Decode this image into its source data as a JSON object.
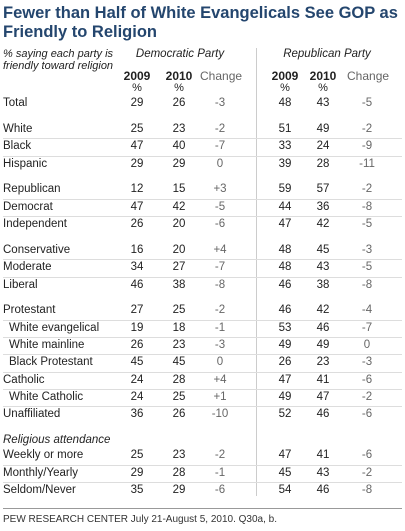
{
  "header": {
    "title": "Fewer than Half of White Evangelicals See GOP as Friendly to Religion",
    "note": "% saying each party is friendly toward religion"
  },
  "table": {
    "parties": [
      "Democratic Party",
      "Republican Party"
    ],
    "columns": [
      "2009",
      "2010",
      "Change",
      "2009",
      "2010",
      "Change"
    ],
    "units": [
      "%",
      "%",
      "%",
      "%"
    ],
    "sections": [
      {
        "rows": [
          {
            "label": "Total",
            "values": [
              "29",
              "26",
              "-3",
              "48",
              "43",
              "-5"
            ]
          }
        ]
      },
      {
        "rows": [
          {
            "label": "White",
            "values": [
              "25",
              "23",
              "-2",
              "51",
              "49",
              "-2"
            ]
          },
          {
            "label": "Black",
            "values": [
              "47",
              "40",
              "-7",
              "33",
              "24",
              "-9"
            ]
          },
          {
            "label": "Hispanic",
            "values": [
              "29",
              "29",
              "0",
              "39",
              "28",
              "-11"
            ]
          }
        ]
      },
      {
        "rows": [
          {
            "label": "Republican",
            "values": [
              "12",
              "15",
              "+3",
              "59",
              "57",
              "-2"
            ]
          },
          {
            "label": "Democrat",
            "values": [
              "47",
              "42",
              "-5",
              "44",
              "36",
              "-8"
            ]
          },
          {
            "label": "Independent",
            "values": [
              "26",
              "20",
              "-6",
              "47",
              "42",
              "-5"
            ]
          }
        ]
      },
      {
        "rows": [
          {
            "label": "Conservative",
            "values": [
              "16",
              "20",
              "+4",
              "48",
              "45",
              "-3"
            ]
          },
          {
            "label": "Moderate",
            "values": [
              "34",
              "27",
              "-7",
              "48",
              "43",
              "-5"
            ]
          },
          {
            "label": "Liberal",
            "values": [
              "46",
              "38",
              "-8",
              "46",
              "38",
              "-8"
            ]
          }
        ]
      },
      {
        "rows": [
          {
            "label": "Protestant",
            "values": [
              "27",
              "25",
              "-2",
              "46",
              "42",
              "-4"
            ],
            "subrows": [
              {
                "label": "White evangelical",
                "values": [
                  "19",
                  "18",
                  "-1",
                  "53",
                  "46",
                  "-7"
                ]
              },
              {
                "label": "White mainline",
                "values": [
                  "26",
                  "23",
                  "-3",
                  "49",
                  "49",
                  "0"
                ]
              },
              {
                "label": "Black Protestant",
                "values": [
                  "45",
                  "45",
                  "0",
                  "26",
                  "23",
                  "-3"
                ]
              }
            ]
          },
          {
            "label": "Catholic",
            "values": [
              "24",
              "28",
              "+4",
              "47",
              "41",
              "-6"
            ],
            "subrows": [
              {
                "label": "White Catholic",
                "values": [
                  "24",
                  "25",
                  "+1",
                  "49",
                  "47",
                  "-2"
                ]
              }
            ]
          },
          {
            "label": "Unaffiliated",
            "values": [
              "36",
              "26",
              "-10",
              "52",
              "46",
              "-6"
            ]
          }
        ]
      },
      {
        "heading": "Religious attendance",
        "rows": [
          {
            "label": "Weekly or more",
            "values": [
              "25",
              "23",
              "-2",
              "47",
              "41",
              "-6"
            ]
          },
          {
            "label": "Monthly/Yearly",
            "values": [
              "29",
              "28",
              "-1",
              "45",
              "43",
              "-2"
            ]
          },
          {
            "label": "Seldom/Never",
            "values": [
              "35",
              "29",
              "-6",
              "54",
              "46",
              "-8"
            ]
          }
        ]
      }
    ]
  },
  "footer": {
    "source": "PEW RESEARCH CENTER July 21-August 5, 2010. Q30a, b."
  }
}
